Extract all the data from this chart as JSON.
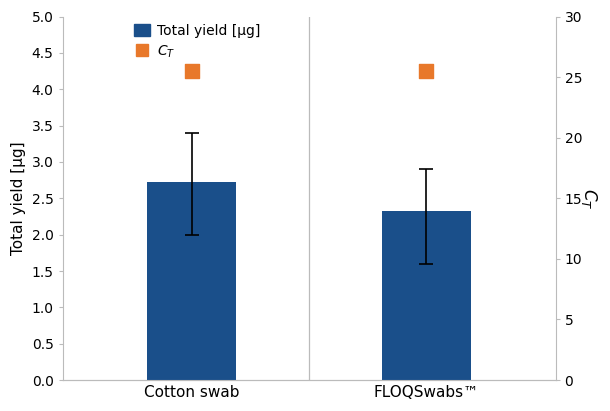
{
  "categories": [
    "Cotton swab",
    "FLOQSwabs™"
  ],
  "bar_values": [
    2.72,
    2.32
  ],
  "bar_errors_up": [
    0.68,
    0.58
  ],
  "bar_errors_down": [
    0.72,
    0.72
  ],
  "bar_color": "#1a4f8a",
  "ct_values": [
    25.5,
    25.5
  ],
  "ct_color": "#e8782a",
  "ylabel_left": "Total yield [µg]",
  "ylim_left": [
    0,
    5
  ],
  "ylim_right": [
    0,
    30
  ],
  "yticks_left": [
    0,
    0.5,
    1.0,
    1.5,
    2.0,
    2.5,
    3.0,
    3.5,
    4.0,
    4.5,
    5.0
  ],
  "yticks_right": [
    0,
    5,
    10,
    15,
    20,
    25,
    30
  ],
  "legend_total_yield": "Total yield [µg]",
  "legend_ct": "C",
  "bar_width": 0.38,
  "background_color": "#ffffff",
  "bar_positions": [
    1,
    2
  ],
  "xlim": [
    0.45,
    2.55
  ],
  "spine_color": "#bbbbbb",
  "figsize": [
    6.1,
    4.11
  ],
  "dpi": 100
}
